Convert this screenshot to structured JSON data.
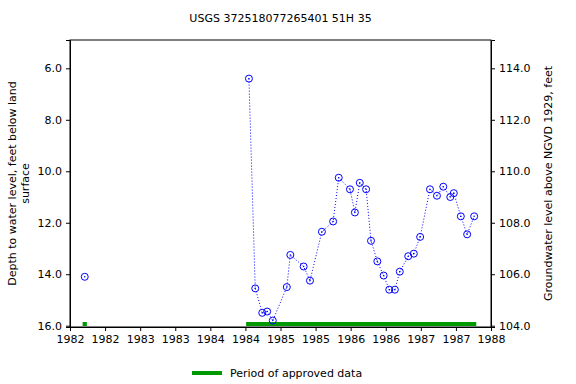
{
  "chart_data": {
    "type": "line",
    "title": "USGS 372518077265401 51H 35",
    "ylabel": [
      "Depth to water level, feet below land",
      "surface"
    ],
    "y2label": "Groundwater level above NGVD 1929, feet",
    "x": [
      1982.21,
      1983.5,
      1984.55,
      1984.64,
      1984.74,
      1984.81,
      1984.89,
      1985.09,
      1985.14,
      1985.33,
      1985.42,
      1985.59,
      1985.75,
      1985.83,
      1985.99,
      1986.06,
      1986.13,
      1986.22,
      1986.29,
      1986.38,
      1986.47,
      1986.55,
      1986.63,
      1986.7,
      1986.82,
      1986.9,
      1986.99,
      1987.13,
      1987.23,
      1987.32,
      1987.42,
      1987.47,
      1987.57,
      1987.66,
      1987.76
    ],
    "series": [
      {
        "color": "#0000ff",
        "marker": "circle",
        "line_style": "dotted",
        "values": [
          14.1,
          null,
          6.4,
          14.55,
          15.5,
          15.45,
          15.8,
          14.5,
          13.25,
          13.7,
          14.25,
          12.35,
          11.95,
          10.25,
          10.7,
          11.6,
          10.45,
          10.7,
          12.7,
          13.5,
          14.05,
          14.6,
          14.6,
          13.9,
          13.3,
          13.2,
          12.55,
          10.7,
          10.95,
          10.6,
          11.0,
          10.85,
          11.75,
          12.45,
          11.75
        ]
      }
    ],
    "approved_periods": {
      "name": "Period of approved data",
      "color": "#009900",
      "ranges": [
        [
          1982.18,
          1982.24
        ],
        [
          1984.51,
          1987.79
        ]
      ]
    },
    "xlim": [
      1982.0,
      1988.0
    ],
    "xticks": [
      {
        "value": 1982.0,
        "label": "1982"
      },
      {
        "value": 1982.5,
        "label": "1982"
      },
      {
        "value": 1983.0,
        "label": "1983"
      },
      {
        "value": 1983.5,
        "label": "1983"
      },
      {
        "value": 1984.0,
        "label": "1984"
      },
      {
        "value": 1984.5,
        "label": "1984"
      },
      {
        "value": 1985.0,
        "label": "1985"
      },
      {
        "value": 1985.5,
        "label": "1985"
      },
      {
        "value": 1986.0,
        "label": "1986"
      },
      {
        "value": 1986.5,
        "label": "1986"
      },
      {
        "value": 1987.0,
        "label": "1987"
      },
      {
        "value": 1987.5,
        "label": "1987"
      },
      {
        "value": 1988.0,
        "label": "1988"
      }
    ],
    "ylim": [
      4.9,
      16.05
    ],
    "yticks": [
      {
        "value": 6,
        "label": "6.0"
      },
      {
        "value": 8,
        "label": "8.0"
      },
      {
        "value": 10,
        "label": "10.0"
      },
      {
        "value": 12,
        "label": "12.0"
      },
      {
        "value": 14,
        "label": "14.0"
      },
      {
        "value": 16,
        "label": "16.0"
      }
    ],
    "y2lim": [
      115.1,
      103.95
    ],
    "y2ticks": [
      {
        "value": 104,
        "label": "104.0"
      },
      {
        "value": 106,
        "label": "106.0"
      },
      {
        "value": 108,
        "label": "108.0"
      },
      {
        "value": 110,
        "label": "110.0"
      },
      {
        "value": 112,
        "label": "112.0"
      },
      {
        "value": 114,
        "label": "114.0"
      }
    ],
    "grid": false
  }
}
